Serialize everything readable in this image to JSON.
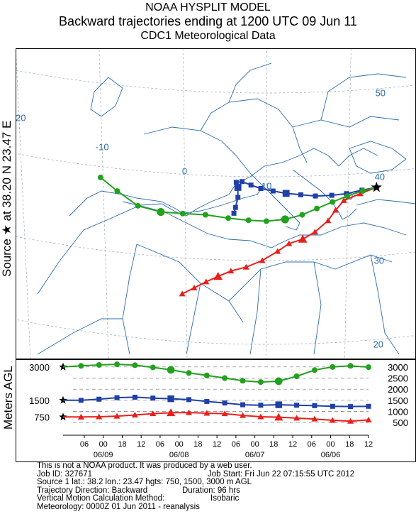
{
  "header": {
    "line1": "NOAA HYSPLIT MODEL",
    "line2": "Backward trajectories ending at 1200 UTC 09 Jun 11",
    "line3": "CDC1 Meteorological Data"
  },
  "side": {
    "map_label": "Source ★ at 38.20 N 23.47 E",
    "height_label": "Meters AGL"
  },
  "map": {
    "lon_labels": [
      "-20",
      "-10",
      "0",
      "10",
      "20",
      "30",
      "40",
      "50"
    ],
    "lat_labels": [
      "20",
      "30",
      "40",
      "50"
    ]
  },
  "chart_data": [
    {
      "type": "line",
      "title": "",
      "description_kind": "trajectory map",
      "source": {
        "lat": 38.2,
        "lon": 23.47
      },
      "series": [
        {
          "name": "750 m AGL",
          "color": "#e8201c",
          "marker": "triangle",
          "points_lonlat": [
            [
              23.47,
              38.2
            ],
            [
              21.5,
              37.6
            ],
            [
              19.5,
              36.9
            ],
            [
              18.5,
              35.8
            ],
            [
              17.6,
              34.6
            ],
            [
              16.0,
              33.3
            ],
            [
              14.5,
              32.5
            ],
            [
              12.8,
              32.0
            ],
            [
              11.4,
              31.1
            ],
            [
              9.5,
              30.0
            ],
            [
              7.5,
              29.2
            ],
            [
              5.6,
              28.7
            ],
            [
              4.0,
              28.0
            ],
            [
              2.5,
              27.3
            ],
            [
              1.0,
              26.5
            ],
            [
              -0.5,
              25.7
            ]
          ]
        },
        {
          "name": "1500 m AGL",
          "color": "#2040a8",
          "marker": "square",
          "points_lonlat": [
            [
              23.47,
              38.2
            ],
            [
              21.7,
              38.0
            ],
            [
              19.8,
              37.7
            ],
            [
              18.0,
              37.6
            ],
            [
              16.0,
              37.6
            ],
            [
              14.2,
              37.8
            ],
            [
              12.4,
              38.0
            ],
            [
              10.8,
              38.3
            ],
            [
              9.3,
              38.6
            ],
            [
              8.1,
              39.0
            ],
            [
              7.0,
              39.4
            ],
            [
              6.3,
              39.3
            ],
            [
              6.5,
              38.7
            ],
            [
              6.5,
              37.5
            ],
            [
              6.2,
              36.3
            ],
            [
              6.0,
              35.6
            ]
          ]
        },
        {
          "name": "3000 m AGL",
          "color": "#22a01e",
          "marker": "circle",
          "points_lonlat": [
            [
              23.47,
              38.2
            ],
            [
              21.8,
              37.9
            ],
            [
              19.9,
              37.4
            ],
            [
              18.1,
              36.8
            ],
            [
              16.2,
              36.1
            ],
            [
              14.4,
              35.4
            ],
            [
              12.3,
              34.9
            ],
            [
              10.0,
              34.7
            ],
            [
              7.8,
              34.8
            ],
            [
              5.3,
              35.0
            ],
            [
              2.5,
              35.3
            ],
            [
              -0.3,
              35.3
            ],
            [
              -3.0,
              35.3
            ],
            [
              -5.8,
              35.8
            ],
            [
              -8.3,
              37.3
            ],
            [
              -10.3,
              38.7
            ]
          ]
        }
      ]
    },
    {
      "type": "line",
      "title": "",
      "ylabel": "Meters AGL",
      "x_tick_labels": [
        "06",
        "00",
        "18",
        "12",
        "06",
        "00",
        "18",
        "12",
        "06",
        "00",
        "18",
        "12",
        "06",
        "00",
        "18",
        "12"
      ],
      "x_date_labels": [
        "06/09",
        "06/08",
        "06/07",
        "06/06"
      ],
      "left_ticks": [
        "3000",
        "1500",
        "750"
      ],
      "right_ticks": [
        "3000",
        "2500",
        "2000",
        "1500",
        "1000",
        "500"
      ],
      "ylim": [
        0,
        3500
      ],
      "series": [
        {
          "name": "3000 m AGL",
          "color": "#22a01e",
          "marker": "circle",
          "values": [
            3000,
            3050,
            3090,
            3120,
            3080,
            2980,
            2870,
            2730,
            2620,
            2500,
            2380,
            2320,
            2360,
            2580,
            2860,
            3000,
            3050,
            2990
          ]
        },
        {
          "name": "1500 m AGL",
          "color": "#2040a8",
          "marker": "square",
          "values": [
            1500,
            1500,
            1550,
            1620,
            1640,
            1600,
            1570,
            1530,
            1450,
            1380,
            1300,
            1280,
            1300,
            1280,
            1260,
            1230,
            1220,
            1230
          ]
        },
        {
          "name": "750 m AGL",
          "color": "#e8201c",
          "marker": "triangle",
          "values": [
            750,
            750,
            760,
            790,
            840,
            900,
            940,
            950,
            920,
            900,
            820,
            760,
            740,
            700,
            660,
            600,
            560,
            620
          ]
        }
      ]
    }
  ],
  "info": {
    "line1": "This is not a NOAA product. It was produced by a web user.",
    "line2a": "Job ID: 327671",
    "line2b": "Job Start: Fri Jun 22 07:15:55 UTC 2012",
    "line3a": "Source 1 lat.: 38.2  lon.: 23.47  hgts: 750, 1500, 3000 m AGL",
    "line4a": "Trajectory Direction: Backward",
    "line4b": "Duration: 96 hrs",
    "line5a": "Vertical Motion Calculation Method:",
    "line5b": "Isobaric",
    "line6a": "Meteorology: 0000Z 01 Jun 2011 - reanalysis"
  }
}
